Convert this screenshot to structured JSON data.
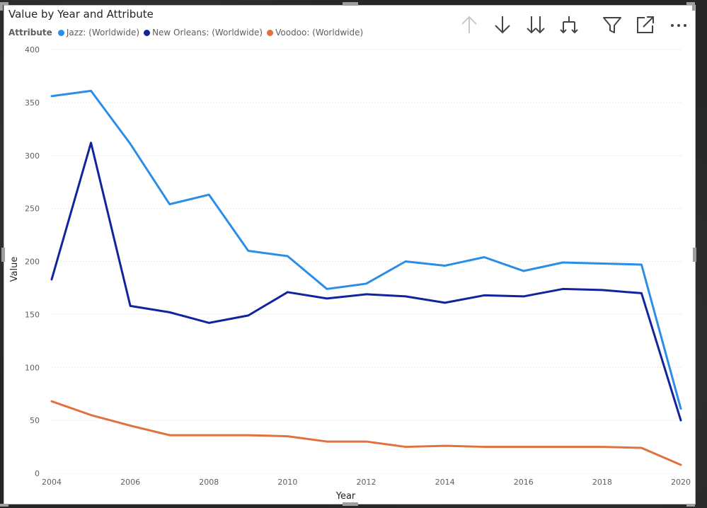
{
  "visual": {
    "title": "Value by Year and Attribute"
  },
  "legend": {
    "title": "Attribute",
    "items": [
      {
        "label": "Jazz: (Worldwide)",
        "color": "#2b8ee6"
      },
      {
        "label": "New Orleans: (Worldwide)",
        "color": "#12239e"
      },
      {
        "label": "Voodoo: (Worldwide)",
        "color": "#e0723e"
      }
    ]
  },
  "toolbar": {
    "icons": [
      "arrow-up-icon",
      "arrow-down-icon",
      "double-arrow-down-icon",
      "expand-hierarchy-icon",
      "filter-icon",
      "focus-mode-icon",
      "more-options-icon"
    ]
  },
  "chart_data": {
    "type": "line",
    "xlabel": "Year",
    "ylabel": "Value",
    "x": [
      2004,
      2005,
      2006,
      2007,
      2008,
      2009,
      2010,
      2011,
      2012,
      2013,
      2014,
      2015,
      2016,
      2017,
      2018,
      2019,
      2020
    ],
    "xticks": [
      "2004",
      "2006",
      "2008",
      "2010",
      "2012",
      "2014",
      "2016",
      "2018",
      "2020"
    ],
    "yticks": [
      "0",
      "50",
      "100",
      "150",
      "200",
      "250",
      "300",
      "350",
      "400"
    ],
    "ylim": [
      0,
      400
    ],
    "grid": true,
    "legend_position": "top-left",
    "series": [
      {
        "name": "Jazz: (Worldwide)",
        "color": "#2b8ee6",
        "values": [
          356,
          361,
          311,
          254,
          263,
          210,
          205,
          174,
          179,
          200,
          196,
          204,
          191,
          199,
          198,
          197,
          61
        ]
      },
      {
        "name": "New Orleans: (Worldwide)",
        "color": "#12239e",
        "values": [
          183,
          312,
          158,
          152,
          142,
          149,
          171,
          165,
          169,
          167,
          161,
          168,
          167,
          174,
          173,
          170,
          50
        ]
      },
      {
        "name": "Voodoo: (Worldwide)",
        "color": "#e0723e",
        "values": [
          68,
          55,
          45,
          36,
          36,
          36,
          35,
          30,
          30,
          25,
          26,
          25,
          25,
          25,
          25,
          24,
          8
        ]
      }
    ]
  }
}
